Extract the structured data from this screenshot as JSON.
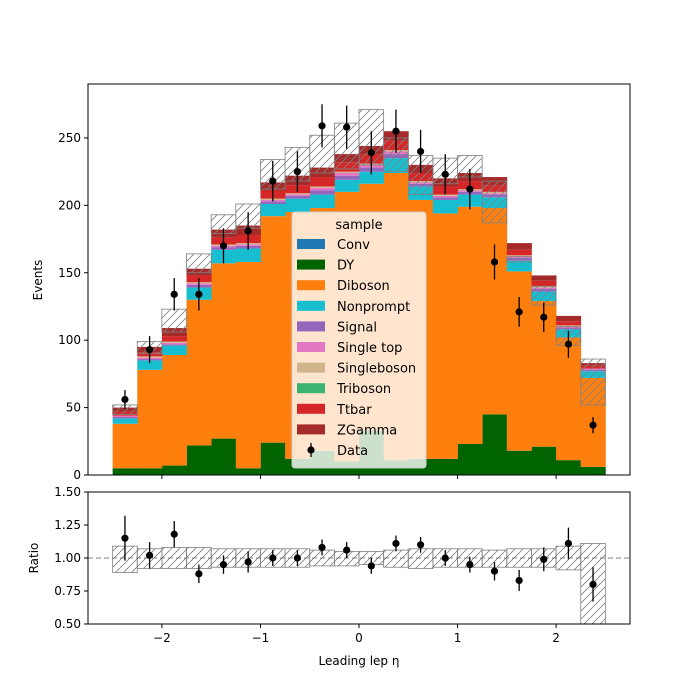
{
  "chart_data": [
    {
      "type": "bar",
      "stacked": true,
      "ylabel": "Events",
      "xlim": [
        -2.75,
        2.75
      ],
      "ylim": [
        0,
        290
      ],
      "xticks": [
        "−2",
        "−1",
        "0",
        "1",
        "2"
      ],
      "xtick_values": [
        -2,
        -1,
        0,
        1,
        2
      ],
      "yticks": [
        "0",
        "50",
        "100",
        "150",
        "200",
        "250"
      ],
      "ytick_values": [
        0,
        50,
        100,
        150,
        200,
        250
      ],
      "bin_edges": [
        -2.5,
        -2.25,
        -2.0,
        -1.75,
        -1.5,
        -1.25,
        -1.0,
        -0.75,
        -0.5,
        -0.25,
        0.0,
        0.25,
        0.5,
        0.75,
        1.0,
        1.25,
        1.5,
        1.75,
        2.0,
        2.25,
        2.5
      ],
      "series": [
        {
          "name": "Conv",
          "color": "#1f77b4",
          "values": [
            0,
            0,
            0,
            0,
            0,
            0,
            0,
            0,
            0,
            0,
            0,
            0,
            0,
            0,
            0,
            0,
            0,
            0,
            0,
            0
          ]
        },
        {
          "name": "DY",
          "color": "#006400",
          "values": [
            5,
            5,
            7,
            22,
            27,
            5,
            24,
            12,
            18,
            10,
            33,
            11,
            12,
            12,
            23,
            45,
            18,
            21,
            11,
            6
          ]
        },
        {
          "name": "Diboson",
          "color": "#ff7f0e",
          "values": [
            33,
            73,
            82,
            108,
            130,
            153,
            168,
            183,
            180,
            200,
            183,
            213,
            192,
            182,
            176,
            153,
            133,
            108,
            91,
            66
          ]
        },
        {
          "name": "Nonprompt",
          "color": "#17becf",
          "values": [
            4,
            7,
            7,
            9,
            10,
            10,
            9,
            10,
            10,
            9,
            9,
            11,
            10,
            10,
            9,
            8,
            8,
            7,
            6,
            5
          ]
        },
        {
          "name": "Signal",
          "color": "#9467bd",
          "values": [
            1,
            1,
            1,
            2,
            2,
            2,
            2,
            2,
            3,
            3,
            3,
            3,
            2,
            2,
            2,
            2,
            2,
            2,
            1,
            1
          ]
        },
        {
          "name": "Single top",
          "color": "#e377c2",
          "values": [
            1,
            1,
            1,
            1,
            1,
            1,
            1,
            1,
            2,
            2,
            2,
            2,
            1,
            1,
            1,
            1,
            1,
            1,
            1,
            1
          ]
        },
        {
          "name": "Singleboson",
          "color": "#d2b48c",
          "values": [
            0,
            1,
            1,
            1,
            1,
            1,
            1,
            1,
            1,
            1,
            1,
            1,
            1,
            1,
            1,
            1,
            1,
            1,
            1,
            0
          ]
        },
        {
          "name": "Triboson",
          "color": "#3cb371",
          "values": [
            0,
            0,
            0,
            0,
            0,
            0,
            0,
            0,
            0,
            0,
            0,
            0,
            0,
            0,
            0,
            0,
            0,
            0,
            0,
            0
          ]
        },
        {
          "name": "Ttbar",
          "color": "#d62728",
          "values": [
            3,
            3,
            4,
            5,
            5,
            6,
            6,
            6,
            7,
            7,
            7,
            7,
            6,
            6,
            6,
            5,
            4,
            4,
            3,
            2
          ]
        },
        {
          "name": "ZGamma",
          "color": "#a52a2a",
          "values": [
            3,
            4,
            6,
            5,
            6,
            7,
            6,
            7,
            7,
            6,
            6,
            7,
            6,
            6,
            6,
            6,
            5,
            4,
            4,
            2
          ]
        }
      ],
      "uncertainty": {
        "up": [
          52,
          99,
          123,
          164,
          193,
          201,
          234,
          243,
          252,
          261,
          271,
          250,
          237,
          235,
          237,
          187,
          158,
          126,
          96,
          52
        ],
        "down": [
          45,
          90,
          106,
          150,
          179,
          183,
          212,
          218,
          224,
          227,
          230,
          225,
          208,
          216,
          221,
          218,
          162,
          140,
          110,
          86
        ]
      },
      "uncertainty_down": [
        45,
        90,
        106,
        150,
        179,
        183,
        212,
        218,
        224,
        227,
        230,
        225,
        208,
        216,
        221,
        218,
        162,
        140,
        110,
        86
      ],
      "data": {
        "name": "Data",
        "x": [
          -2.375,
          -2.125,
          -1.875,
          -1.625,
          -1.375,
          -1.125,
          -0.875,
          -0.625,
          -0.375,
          -0.125,
          0.125,
          0.375,
          0.625,
          0.875,
          1.125,
          1.375,
          1.625,
          1.875,
          2.125,
          2.375
        ],
        "y": [
          56,
          93,
          134,
          134,
          170,
          181,
          218,
          225,
          259,
          258,
          239,
          255,
          240,
          223,
          212,
          158,
          121,
          117,
          97,
          37
        ],
        "err": [
          7,
          10,
          12,
          12,
          13,
          14,
          15,
          15,
          16,
          16,
          16,
          16,
          16,
          15,
          15,
          13,
          11,
          11,
          10,
          6
        ]
      },
      "legend": {
        "title": "sample",
        "location": "center"
      }
    },
    {
      "type": "scatter",
      "ylabel": "Ratio",
      "xlabel": "Leading lep η",
      "xlim": [
        -2.75,
        2.75
      ],
      "ylim": [
        0.5,
        1.5
      ],
      "yticks": [
        "0.50",
        "0.75",
        "1.00",
        "1.25",
        "1.50"
      ],
      "ytick_values": [
        0.5,
        0.75,
        1.0,
        1.25,
        1.5
      ],
      "xticks": [
        "−2",
        "−1",
        "0",
        "1",
        "2"
      ],
      "xtick_values": [
        -2,
        -1,
        0,
        1,
        2
      ],
      "reference_line": 1.0,
      "ratio": {
        "x": [
          -2.375,
          -2.125,
          -1.875,
          -1.625,
          -1.375,
          -1.125,
          -0.875,
          -0.625,
          -0.375,
          -0.125,
          0.125,
          0.375,
          0.625,
          0.875,
          1.125,
          1.375,
          1.625,
          1.875,
          2.125,
          2.375
        ],
        "y": [
          1.15,
          1.02,
          1.18,
          0.88,
          0.95,
          0.97,
          1.0,
          1.0,
          1.08,
          1.06,
          0.94,
          1.11,
          1.1,
          1.0,
          0.95,
          0.9,
          0.83,
          0.99,
          1.11,
          0.8
        ],
        "err": [
          0.17,
          0.1,
          0.1,
          0.07,
          0.07,
          0.08,
          0.06,
          0.06,
          0.06,
          0.06,
          0.06,
          0.06,
          0.06,
          0.06,
          0.06,
          0.07,
          0.08,
          0.09,
          0.12,
          0.13
        ]
      },
      "band": {
        "up": [
          1.09,
          1.07,
          1.08,
          1.08,
          1.07,
          1.07,
          1.07,
          1.07,
          1.06,
          1.05,
          1.05,
          1.06,
          1.07,
          1.07,
          1.07,
          1.06,
          1.07,
          1.07,
          1.09,
          1.11
        ],
        "down": [
          0.89,
          0.92,
          0.92,
          0.92,
          0.93,
          0.93,
          0.93,
          0.93,
          0.94,
          0.94,
          0.95,
          0.93,
          0.92,
          0.93,
          0.93,
          0.93,
          0.93,
          0.93,
          0.91,
          0.5
        ]
      }
    }
  ]
}
